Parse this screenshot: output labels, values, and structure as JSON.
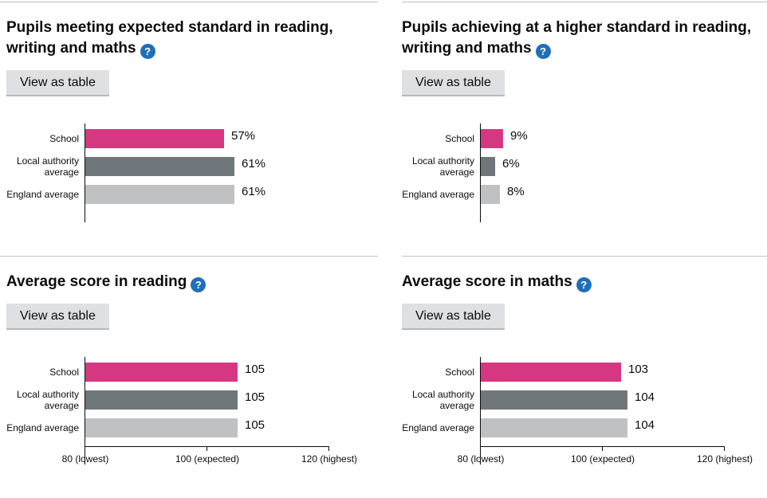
{
  "ui": {
    "view_as_table_label": "View as table",
    "help_icon_glyph": "?"
  },
  "colors": {
    "school_bar": "#d53880",
    "local_authority_bar": "#6f777b",
    "england_bar": "#bfc1c3",
    "help_icon_bg": "#1d70b8",
    "text": "#0b0c0c",
    "button_bg": "#dee0e2",
    "divider": "#bfc1c3"
  },
  "chart_data": [
    {
      "type": "bar",
      "orientation": "horizontal",
      "title": "Pupils meeting expected standard in reading, writing and maths",
      "categories": [
        "School",
        "Local authority average",
        "England average"
      ],
      "values": [
        57,
        61,
        61
      ],
      "value_labels": [
        "57%",
        "61%",
        "61%"
      ],
      "xlim": [
        0,
        100
      ],
      "x_ticks": [],
      "bar_colors": [
        "#d53880",
        "#6f777b",
        "#bfc1c3"
      ],
      "grid": false,
      "legend": false
    },
    {
      "type": "bar",
      "orientation": "horizontal",
      "title": "Pupils achieving at a higher standard in reading, writing and maths",
      "categories": [
        "School",
        "Local authority average",
        "England average"
      ],
      "values": [
        9,
        6,
        8
      ],
      "value_labels": [
        "9%",
        "6%",
        "8%"
      ],
      "xlim": [
        0,
        100
      ],
      "x_ticks": [],
      "bar_colors": [
        "#d53880",
        "#6f777b",
        "#bfc1c3"
      ],
      "grid": false,
      "legend": false
    },
    {
      "type": "bar",
      "orientation": "horizontal",
      "title": "Average score in reading",
      "categories": [
        "School",
        "Local authority average",
        "England average"
      ],
      "values": [
        105,
        105,
        105
      ],
      "value_labels": [
        "105",
        "105",
        "105"
      ],
      "xlim": [
        80,
        120
      ],
      "x_ticks": [
        {
          "value": 80,
          "label": "80 (lowest)"
        },
        {
          "value": 100,
          "label": "100 (expected)"
        },
        {
          "value": 120,
          "label": "120 (highest)"
        }
      ],
      "bar_colors": [
        "#d53880",
        "#6f777b",
        "#bfc1c3"
      ],
      "grid": false,
      "legend": false
    },
    {
      "type": "bar",
      "orientation": "horizontal",
      "title": "Average score in maths",
      "categories": [
        "School",
        "Local authority average",
        "England average"
      ],
      "values": [
        103,
        104,
        104
      ],
      "value_labels": [
        "103",
        "104",
        "104"
      ],
      "xlim": [
        80,
        120
      ],
      "x_ticks": [
        {
          "value": 80,
          "label": "80 (lowest)"
        },
        {
          "value": 100,
          "label": "100 (expected)"
        },
        {
          "value": 120,
          "label": "120 (highest)"
        }
      ],
      "bar_colors": [
        "#d53880",
        "#6f777b",
        "#bfc1c3"
      ],
      "grid": false,
      "legend": false
    }
  ]
}
